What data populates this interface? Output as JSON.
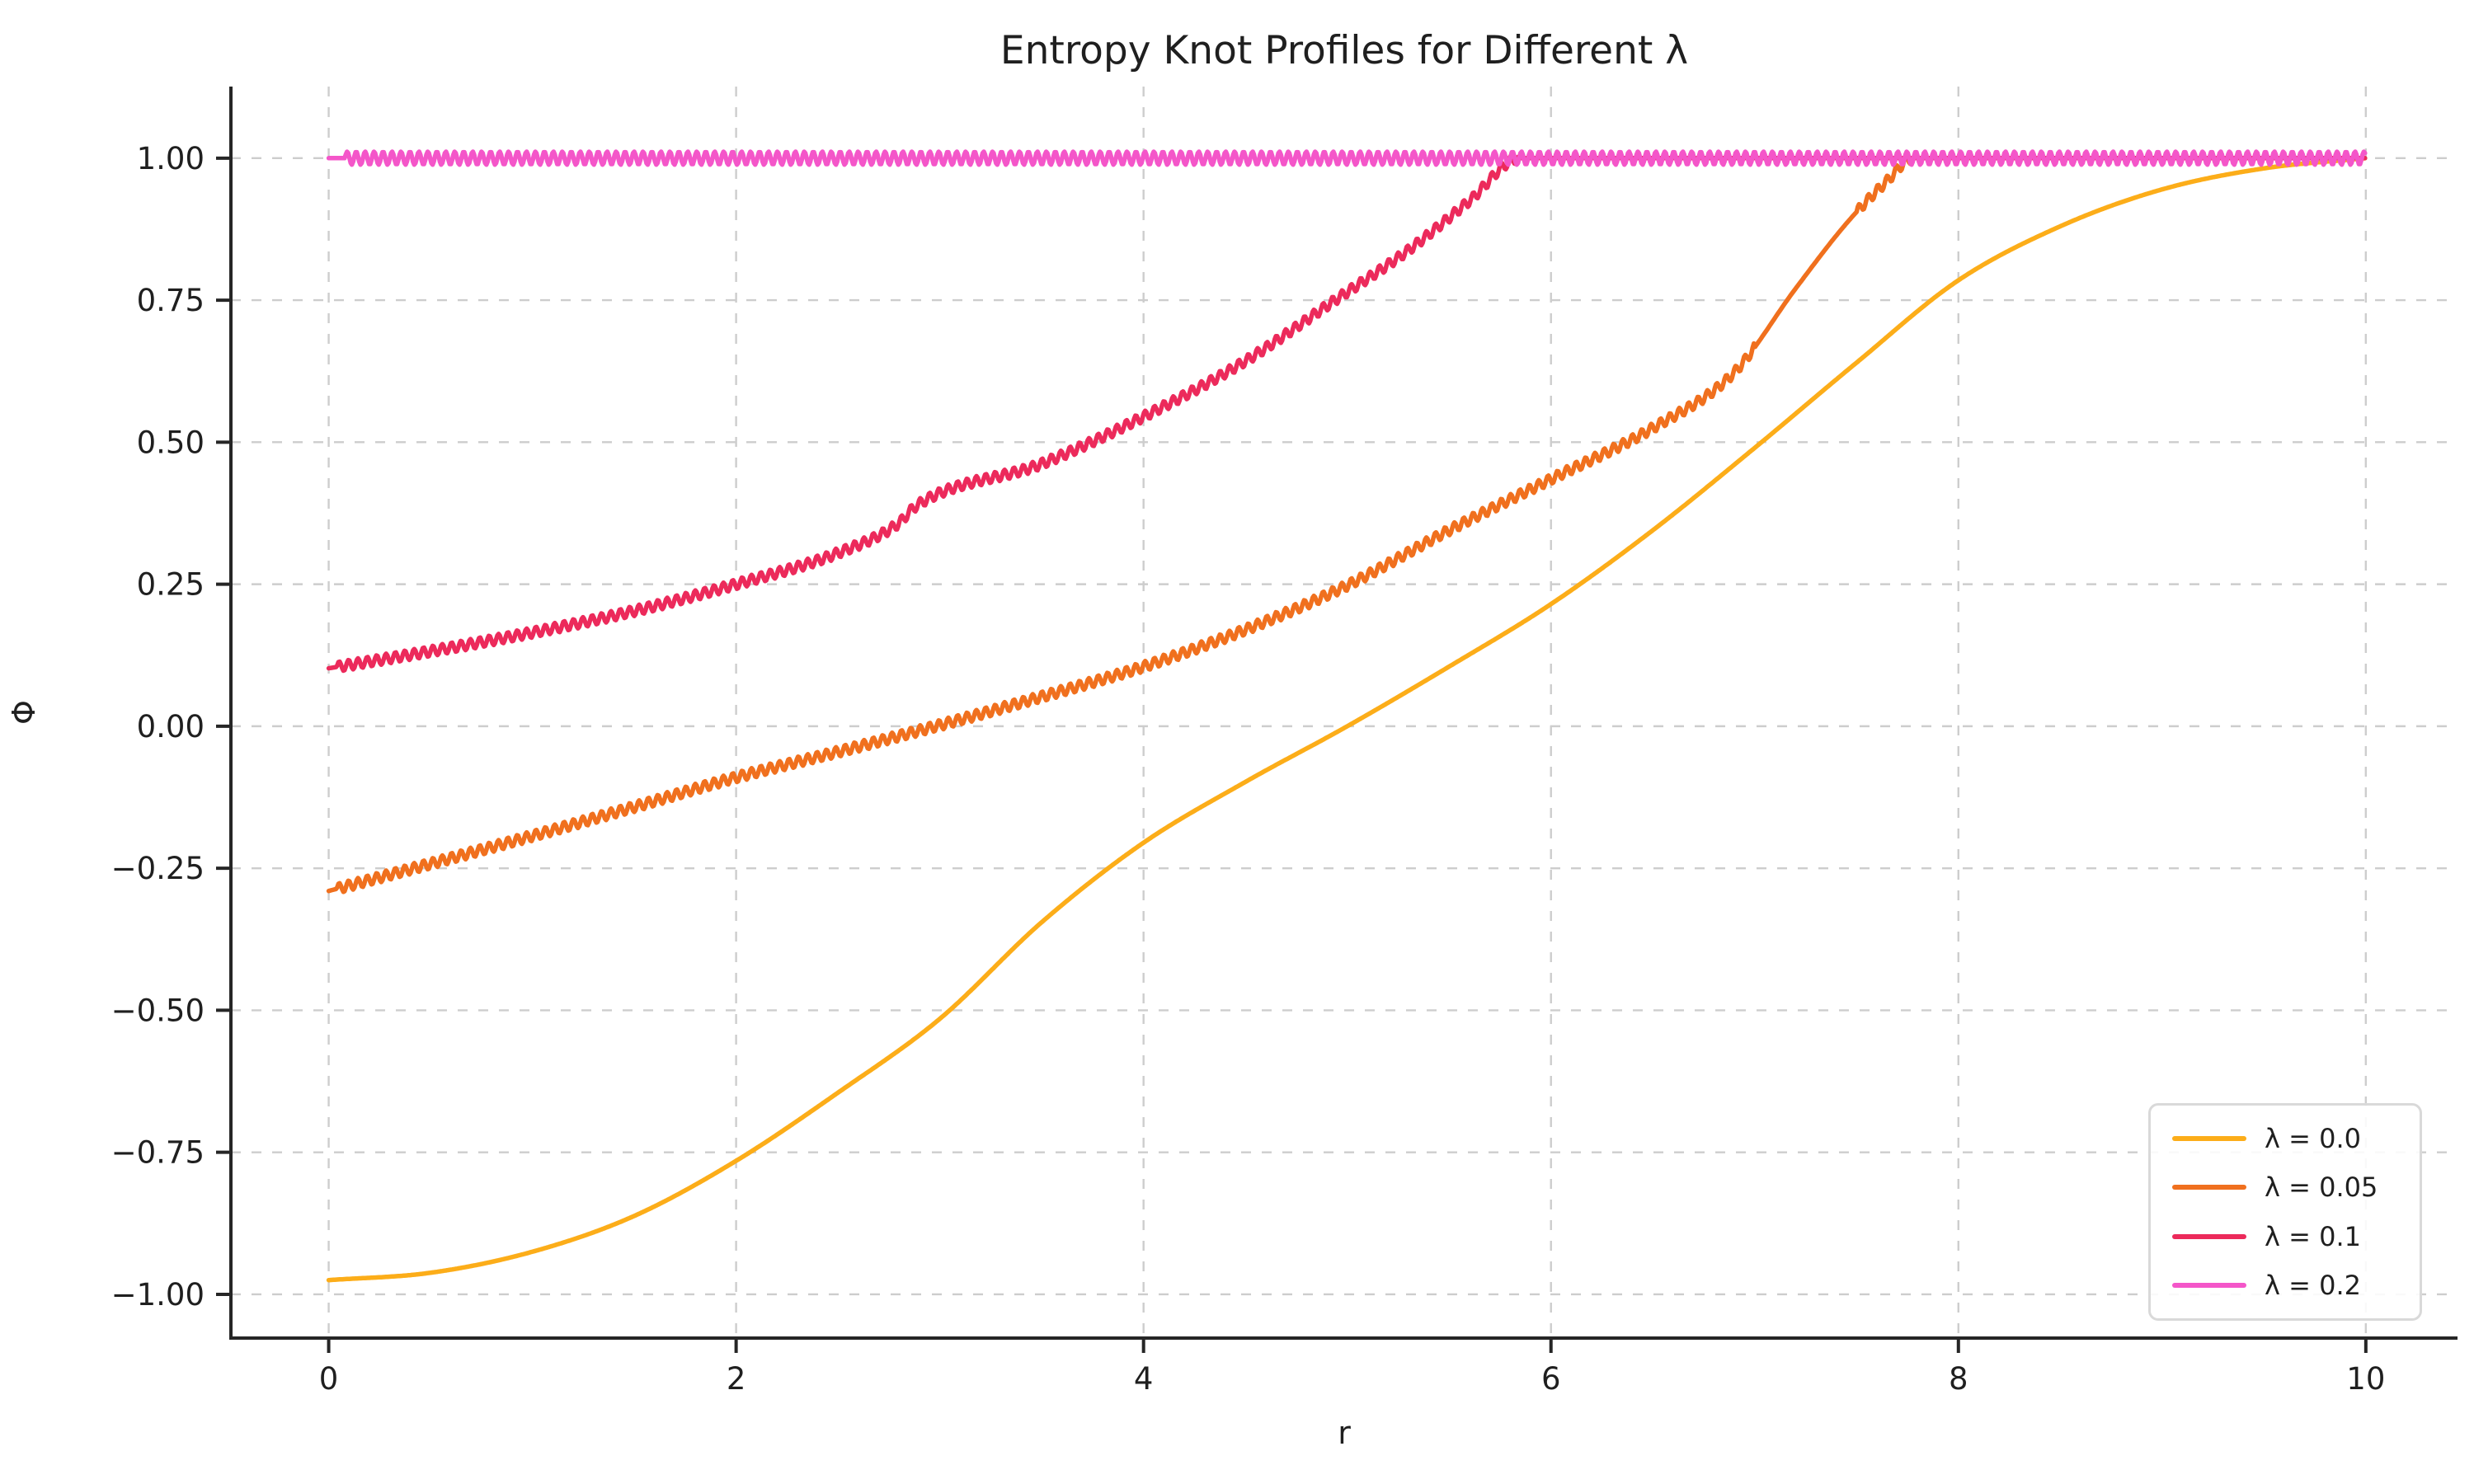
{
  "title": "Entropy Knot Profiles for Different λ",
  "chart_data": {
    "type": "line",
    "title": "Entropy Knot Profiles for Different λ",
    "xlabel": "r",
    "ylabel": "Φ",
    "xlim": [
      -0.48,
      10.45
    ],
    "ylim": [
      -1.077,
      1.126
    ],
    "x_ticks": [
      0,
      2,
      4,
      6,
      8,
      10
    ],
    "x_tick_labels": [
      "0",
      "2",
      "4",
      "6",
      "8",
      "10"
    ],
    "y_ticks": [
      1.0,
      0.75,
      0.5,
      0.25,
      0.0,
      -0.25,
      -0.5,
      -0.75,
      -1.0
    ],
    "y_tick_labels": [
      "1.00",
      "0.75",
      "0.50",
      "0.25",
      "0.00",
      "−0.25",
      "−0.50",
      "−0.75",
      "−1.00"
    ],
    "grid": {
      "visible": true,
      "style": "dashed",
      "color": "#cdcdcd"
    },
    "spine_color": "#262626",
    "text_color": "#1f1f1f",
    "legend_position": "lower right",
    "series": [
      {
        "label": "λ = 0.0",
        "color": "#FCAD19",
        "points": [
          [
            0,
            -0.975
          ],
          [
            0.5,
            -0.962
          ],
          [
            1,
            -0.925
          ],
          [
            1.5,
            -0.862
          ],
          [
            2,
            -0.765
          ],
          [
            2.5,
            -0.645
          ],
          [
            3,
            -0.515
          ],
          [
            3.5,
            -0.345
          ],
          [
            4,
            -0.205
          ],
          [
            4.5,
            -0.098
          ],
          [
            5,
            0.0
          ],
          [
            5.5,
            0.105
          ],
          [
            6,
            0.215
          ],
          [
            6.5,
            0.345
          ],
          [
            7,
            0.49
          ],
          [
            7.5,
            0.64
          ],
          [
            8,
            0.785
          ],
          [
            8.5,
            0.88
          ],
          [
            9,
            0.945
          ],
          [
            9.5,
            0.982
          ],
          [
            10,
            1.0
          ]
        ],
        "oscillation": null
      },
      {
        "label": "λ = 0.05",
        "color": "#F0701E",
        "points": [
          [
            0,
            -0.29
          ],
          [
            0.5,
            -0.242
          ],
          [
            1,
            -0.193
          ],
          [
            1.5,
            -0.142
          ],
          [
            2,
            -0.09
          ],
          [
            2.5,
            -0.045
          ],
          [
            3,
            0.002
          ],
          [
            3.5,
            0.052
          ],
          [
            4,
            0.105
          ],
          [
            4.5,
            0.17
          ],
          [
            5,
            0.248
          ],
          [
            5.5,
            0.345
          ],
          [
            6,
            0.435
          ],
          [
            6.5,
            0.525
          ],
          [
            6.9,
            0.623
          ],
          [
            7.2,
            0.77
          ],
          [
            7.45,
            0.885
          ],
          [
            7.65,
            0.96
          ],
          [
            7.78,
            1.0
          ],
          [
            10,
            1.0
          ]
        ],
        "oscillation": {
          "amplitude": 0.009,
          "period": 0.046,
          "ranges": [
            [
              0.04,
              7.0
            ],
            [
              7.5,
              7.78
            ]
          ]
        }
      },
      {
        "label": "λ = 0.1",
        "color": "#EC2A5B",
        "points": [
          [
            0,
            0.102
          ],
          [
            0.5,
            0.132
          ],
          [
            1,
            0.165
          ],
          [
            1.5,
            0.203
          ],
          [
            2,
            0.25
          ],
          [
            2.5,
            0.305
          ],
          [
            2.8,
            0.358
          ],
          [
            2.88,
            0.387
          ],
          [
            3.5,
            0.462
          ],
          [
            4,
            0.545
          ],
          [
            4.5,
            0.643
          ],
          [
            4.94,
            0.75
          ],
          [
            5.3,
            0.838
          ],
          [
            5.6,
            0.925
          ],
          [
            5.85,
            1.0
          ],
          [
            10,
            1.0
          ]
        ],
        "oscillation": {
          "amplitude": 0.009,
          "period": 0.046,
          "ranges": [
            [
              0.04,
              5.84
            ]
          ]
        }
      },
      {
        "label": "λ = 0.2",
        "color": "#F456C9",
        "points": [
          [
            0,
            1.0
          ],
          [
            10,
            1.0
          ]
        ],
        "oscillation": {
          "amplitude": 0.0115,
          "period": 0.044,
          "ranges": [
            [
              0.08,
              10
            ]
          ]
        }
      }
    ]
  }
}
